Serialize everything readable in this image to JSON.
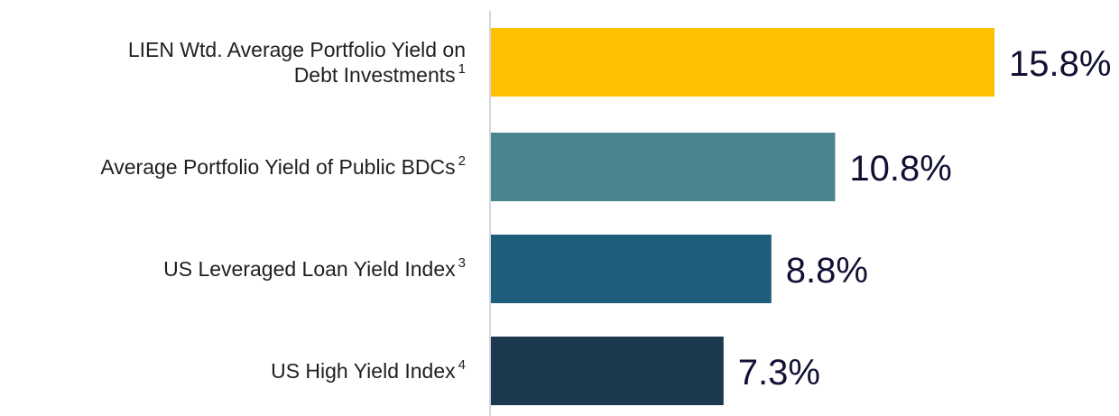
{
  "chart_data": {
    "type": "bar",
    "orientation": "horizontal",
    "categories": [
      {
        "lines": [
          "LIEN Wtd. Average Portfolio Yield on",
          "Debt Investments"
        ],
        "footnote": "1"
      },
      {
        "lines": [
          "Average Portfolio Yield of Public BDCs"
        ],
        "footnote": "2"
      },
      {
        "lines": [
          "US Leveraged Loan Yield Index"
        ],
        "footnote": "3"
      },
      {
        "lines": [
          "US High Yield Index"
        ],
        "footnote": "4"
      }
    ],
    "values": [
      15.8,
      10.8,
      8.8,
      7.3
    ],
    "value_labels": [
      "15.8%",
      "10.8%",
      "8.8%",
      "7.3%"
    ],
    "colors": [
      "#FFC000",
      "#4A848C",
      "#1E5E7A",
      "#1C384C"
    ],
    "title": "",
    "xlabel": "",
    "ylabel": "",
    "xlim": [
      0,
      15.8
    ],
    "grid": false,
    "legend": "none",
    "axis_color": "#C6C6DA"
  }
}
